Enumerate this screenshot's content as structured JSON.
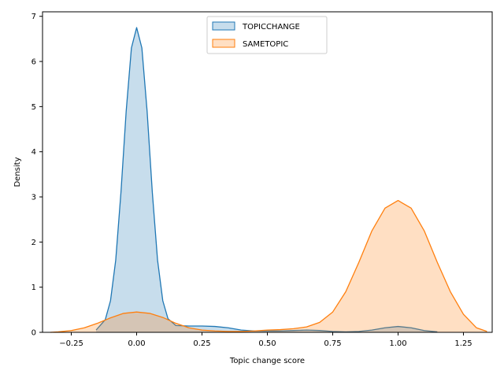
{
  "chart_data": {
    "type": "area",
    "xlabel": "Topic change score",
    "ylabel": "Density",
    "xlim": [
      -0.36,
      1.36
    ],
    "ylim": [
      0,
      7.1
    ],
    "xticks": [
      -0.25,
      0.0,
      0.25,
      0.5,
      0.75,
      1.0,
      1.25
    ],
    "xtick_labels": [
      "−0.25",
      "0.00",
      "0.25",
      "0.50",
      "0.75",
      "1.00",
      "1.25"
    ],
    "yticks": [
      0,
      1,
      2,
      3,
      4,
      5,
      6,
      7
    ],
    "ytick_labels": [
      "0",
      "1",
      "2",
      "3",
      "4",
      "5",
      "6",
      "7"
    ],
    "grid": false,
    "legend_position": "top-center",
    "series": [
      {
        "name": "TOPICCHANGE",
        "color": "#1f77b4",
        "fill": "#1f77b4",
        "x": [
          -0.155,
          -0.12,
          -0.1,
          -0.08,
          -0.06,
          -0.04,
          -0.02,
          0.0,
          0.02,
          0.04,
          0.06,
          0.08,
          0.1,
          0.12,
          0.15,
          0.2,
          0.25,
          0.3,
          0.35,
          0.4,
          0.45,
          0.5,
          0.55,
          0.6,
          0.65,
          0.7,
          0.75,
          0.8,
          0.85,
          0.9,
          0.95,
          1.0,
          1.05,
          1.1,
          1.15
        ],
        "y": [
          0.05,
          0.28,
          0.7,
          1.6,
          3.1,
          4.9,
          6.3,
          6.75,
          6.3,
          4.9,
          3.1,
          1.6,
          0.7,
          0.3,
          0.15,
          0.14,
          0.14,
          0.13,
          0.1,
          0.05,
          0.03,
          0.03,
          0.03,
          0.04,
          0.05,
          0.04,
          0.02,
          0.01,
          0.02,
          0.05,
          0.1,
          0.13,
          0.1,
          0.04,
          0.01
        ]
      },
      {
        "name": "SAMETOPIC",
        "color": "#ff7f0e",
        "fill": "#ff7f0e",
        "x": [
          -0.33,
          -0.3,
          -0.25,
          -0.2,
          -0.15,
          -0.1,
          -0.05,
          0.0,
          0.05,
          0.1,
          0.15,
          0.2,
          0.25,
          0.3,
          0.35,
          0.4,
          0.45,
          0.5,
          0.55,
          0.6,
          0.65,
          0.7,
          0.75,
          0.8,
          0.85,
          0.9,
          0.95,
          1.0,
          1.05,
          1.1,
          1.15,
          1.2,
          1.25,
          1.3,
          1.34
        ],
        "y": [
          0.0,
          0.01,
          0.04,
          0.1,
          0.2,
          0.32,
          0.42,
          0.45,
          0.42,
          0.33,
          0.2,
          0.1,
          0.05,
          0.03,
          0.02,
          0.02,
          0.03,
          0.05,
          0.06,
          0.08,
          0.12,
          0.22,
          0.45,
          0.9,
          1.55,
          2.25,
          2.75,
          2.92,
          2.75,
          2.25,
          1.55,
          0.9,
          0.4,
          0.1,
          0.02
        ]
      }
    ]
  }
}
